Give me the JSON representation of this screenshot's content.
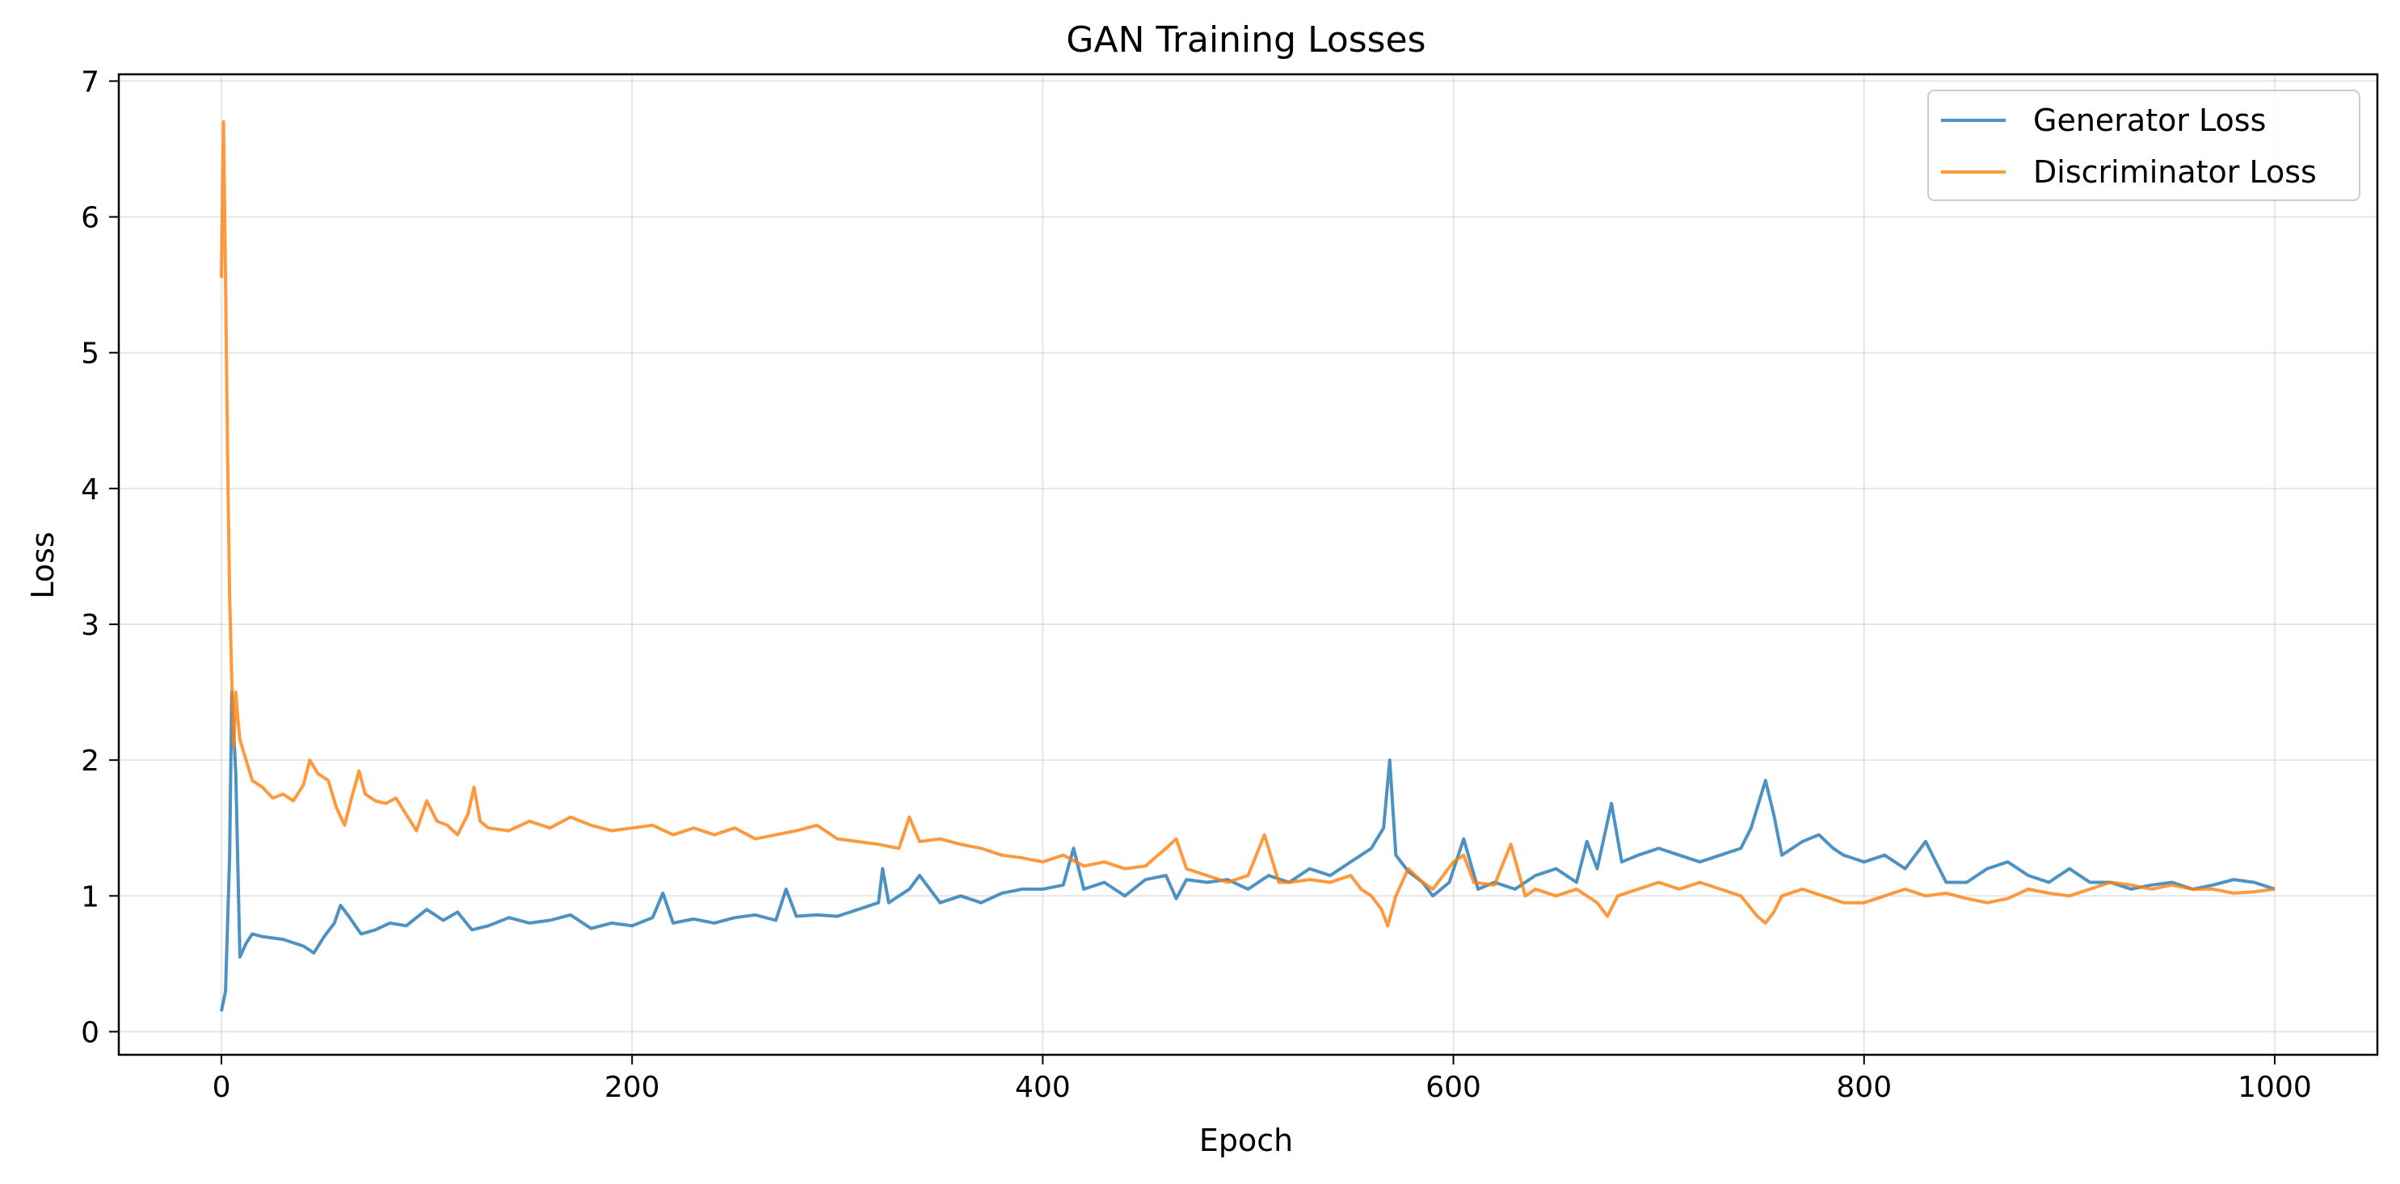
{
  "chart_data": {
    "type": "line",
    "title": "GAN Training Losses",
    "xlabel": "Epoch",
    "ylabel": "Loss",
    "xlim": [
      -50,
      1050
    ],
    "ylim": [
      -0.17,
      7.05
    ],
    "xticks": [
      0,
      200,
      400,
      600,
      800,
      1000
    ],
    "yticks": [
      0,
      1,
      2,
      3,
      4,
      5,
      6,
      7
    ],
    "grid": true,
    "legend_position": "top-right",
    "series": [
      {
        "name": "Generator Loss",
        "color": "#1f77b4",
        "points": [
          [
            0,
            0.15
          ],
          [
            2,
            0.3
          ],
          [
            4,
            1.3
          ],
          [
            5,
            2.5
          ],
          [
            7,
            1.9
          ],
          [
            8,
            1.2
          ],
          [
            9,
            0.55
          ],
          [
            12,
            0.65
          ],
          [
            15,
            0.72
          ],
          [
            20,
            0.7
          ],
          [
            30,
            0.68
          ],
          [
            40,
            0.63
          ],
          [
            45,
            0.58
          ],
          [
            50,
            0.7
          ],
          [
            55,
            0.8
          ],
          [
            58,
            0.93
          ],
          [
            62,
            0.85
          ],
          [
            68,
            0.72
          ],
          [
            75,
            0.75
          ],
          [
            82,
            0.8
          ],
          [
            90,
            0.78
          ],
          [
            100,
            0.9
          ],
          [
            108,
            0.82
          ],
          [
            115,
            0.88
          ],
          [
            122,
            0.75
          ],
          [
            130,
            0.78
          ],
          [
            140,
            0.84
          ],
          [
            150,
            0.8
          ],
          [
            160,
            0.82
          ],
          [
            170,
            0.86
          ],
          [
            180,
            0.76
          ],
          [
            190,
            0.8
          ],
          [
            200,
            0.78
          ],
          [
            210,
            0.84
          ],
          [
            215,
            1.02
          ],
          [
            220,
            0.8
          ],
          [
            230,
            0.83
          ],
          [
            240,
            0.8
          ],
          [
            250,
            0.84
          ],
          [
            260,
            0.86
          ],
          [
            270,
            0.82
          ],
          [
            275,
            1.05
          ],
          [
            280,
            0.85
          ],
          [
            290,
            0.86
          ],
          [
            300,
            0.85
          ],
          [
            310,
            0.9
          ],
          [
            320,
            0.95
          ],
          [
            322,
            1.2
          ],
          [
            325,
            0.95
          ],
          [
            335,
            1.05
          ],
          [
            340,
            1.15
          ],
          [
            350,
            0.95
          ],
          [
            360,
            1.0
          ],
          [
            370,
            0.95
          ],
          [
            380,
            1.02
          ],
          [
            390,
            1.05
          ],
          [
            400,
            1.05
          ],
          [
            410,
            1.08
          ],
          [
            415,
            1.35
          ],
          [
            420,
            1.05
          ],
          [
            430,
            1.1
          ],
          [
            440,
            1.0
          ],
          [
            450,
            1.12
          ],
          [
            460,
            1.15
          ],
          [
            465,
            0.98
          ],
          [
            470,
            1.12
          ],
          [
            480,
            1.1
          ],
          [
            490,
            1.12
          ],
          [
            500,
            1.05
          ],
          [
            510,
            1.15
          ],
          [
            520,
            1.1
          ],
          [
            530,
            1.2
          ],
          [
            540,
            1.15
          ],
          [
            550,
            1.25
          ],
          [
            560,
            1.35
          ],
          [
            566,
            1.5
          ],
          [
            569,
            2.0
          ],
          [
            572,
            1.3
          ],
          [
            578,
            1.18
          ],
          [
            585,
            1.1
          ],
          [
            590,
            1.0
          ],
          [
            598,
            1.1
          ],
          [
            605,
            1.42
          ],
          [
            612,
            1.05
          ],
          [
            620,
            1.1
          ],
          [
            630,
            1.05
          ],
          [
            640,
            1.15
          ],
          [
            650,
            1.2
          ],
          [
            660,
            1.1
          ],
          [
            665,
            1.4
          ],
          [
            670,
            1.2
          ],
          [
            677,
            1.68
          ],
          [
            682,
            1.25
          ],
          [
            690,
            1.3
          ],
          [
            700,
            1.35
          ],
          [
            710,
            1.3
          ],
          [
            720,
            1.25
          ],
          [
            730,
            1.3
          ],
          [
            740,
            1.35
          ],
          [
            745,
            1.5
          ],
          [
            752,
            1.85
          ],
          [
            756,
            1.6
          ],
          [
            760,
            1.3
          ],
          [
            770,
            1.4
          ],
          [
            778,
            1.45
          ],
          [
            785,
            1.35
          ],
          [
            790,
            1.3
          ],
          [
            800,
            1.25
          ],
          [
            810,
            1.3
          ],
          [
            820,
            1.2
          ],
          [
            830,
            1.4
          ],
          [
            840,
            1.1
          ],
          [
            850,
            1.1
          ],
          [
            860,
            1.2
          ],
          [
            870,
            1.25
          ],
          [
            880,
            1.15
          ],
          [
            890,
            1.1
          ],
          [
            900,
            1.2
          ],
          [
            910,
            1.1
          ],
          [
            920,
            1.1
          ],
          [
            930,
            1.05
          ],
          [
            940,
            1.08
          ],
          [
            950,
            1.1
          ],
          [
            960,
            1.05
          ],
          [
            970,
            1.08
          ],
          [
            980,
            1.12
          ],
          [
            990,
            1.1
          ],
          [
            1000,
            1.05
          ]
        ]
      },
      {
        "name": "Discriminator Loss",
        "color": "#ff7f0e",
        "points": [
          [
            0,
            5.55
          ],
          [
            1,
            6.7
          ],
          [
            2,
            5.55
          ],
          [
            3,
            4.2
          ],
          [
            4,
            3.2
          ],
          [
            5,
            2.6
          ],
          [
            6,
            2.1
          ],
          [
            7,
            2.5
          ],
          [
            8,
            2.3
          ],
          [
            9,
            2.15
          ],
          [
            12,
            2.0
          ],
          [
            15,
            1.85
          ],
          [
            20,
            1.8
          ],
          [
            25,
            1.72
          ],
          [
            30,
            1.75
          ],
          [
            35,
            1.7
          ],
          [
            40,
            1.82
          ],
          [
            43,
            2.0
          ],
          [
            47,
            1.9
          ],
          [
            52,
            1.85
          ],
          [
            56,
            1.65
          ],
          [
            60,
            1.52
          ],
          [
            63,
            1.7
          ],
          [
            67,
            1.92
          ],
          [
            70,
            1.75
          ],
          [
            75,
            1.7
          ],
          [
            80,
            1.68
          ],
          [
            85,
            1.72
          ],
          [
            90,
            1.6
          ],
          [
            95,
            1.48
          ],
          [
            100,
            1.7
          ],
          [
            105,
            1.55
          ],
          [
            110,
            1.52
          ],
          [
            115,
            1.45
          ],
          [
            120,
            1.6
          ],
          [
            123,
            1.8
          ],
          [
            126,
            1.55
          ],
          [
            130,
            1.5
          ],
          [
            140,
            1.48
          ],
          [
            150,
            1.55
          ],
          [
            160,
            1.5
          ],
          [
            170,
            1.58
          ],
          [
            180,
            1.52
          ],
          [
            190,
            1.48
          ],
          [
            200,
            1.5
          ],
          [
            210,
            1.52
          ],
          [
            220,
            1.45
          ],
          [
            230,
            1.5
          ],
          [
            240,
            1.45
          ],
          [
            250,
            1.5
          ],
          [
            260,
            1.42
          ],
          [
            270,
            1.45
          ],
          [
            280,
            1.48
          ],
          [
            290,
            1.52
          ],
          [
            300,
            1.42
          ],
          [
            310,
            1.4
          ],
          [
            320,
            1.38
          ],
          [
            330,
            1.35
          ],
          [
            335,
            1.58
          ],
          [
            340,
            1.4
          ],
          [
            350,
            1.42
          ],
          [
            360,
            1.38
          ],
          [
            370,
            1.35
          ],
          [
            380,
            1.3
          ],
          [
            390,
            1.28
          ],
          [
            400,
            1.25
          ],
          [
            410,
            1.3
          ],
          [
            420,
            1.22
          ],
          [
            430,
            1.25
          ],
          [
            440,
            1.2
          ],
          [
            450,
            1.22
          ],
          [
            460,
            1.35
          ],
          [
            465,
            1.42
          ],
          [
            470,
            1.2
          ],
          [
            480,
            1.15
          ],
          [
            490,
            1.1
          ],
          [
            500,
            1.15
          ],
          [
            508,
            1.45
          ],
          [
            515,
            1.1
          ],
          [
            520,
            1.1
          ],
          [
            530,
            1.12
          ],
          [
            540,
            1.1
          ],
          [
            550,
            1.15
          ],
          [
            555,
            1.05
          ],
          [
            560,
            1.0
          ],
          [
            565,
            0.9
          ],
          [
            568,
            0.78
          ],
          [
            572,
            1.0
          ],
          [
            578,
            1.2
          ],
          [
            585,
            1.1
          ],
          [
            590,
            1.05
          ],
          [
            600,
            1.25
          ],
          [
            605,
            1.3
          ],
          [
            610,
            1.1
          ],
          [
            620,
            1.08
          ],
          [
            628,
            1.38
          ],
          [
            635,
            1.0
          ],
          [
            640,
            1.05
          ],
          [
            650,
            1.0
          ],
          [
            660,
            1.05
          ],
          [
            670,
            0.95
          ],
          [
            675,
            0.85
          ],
          [
            680,
            1.0
          ],
          [
            690,
            1.05
          ],
          [
            700,
            1.1
          ],
          [
            710,
            1.05
          ],
          [
            720,
            1.1
          ],
          [
            730,
            1.05
          ],
          [
            740,
            1.0
          ],
          [
            748,
            0.85
          ],
          [
            752,
            0.8
          ],
          [
            756,
            0.88
          ],
          [
            760,
            1.0
          ],
          [
            770,
            1.05
          ],
          [
            780,
            1.0
          ],
          [
            790,
            0.95
          ],
          [
            800,
            0.95
          ],
          [
            810,
            1.0
          ],
          [
            820,
            1.05
          ],
          [
            830,
            1.0
          ],
          [
            840,
            1.02
          ],
          [
            850,
            0.98
          ],
          [
            860,
            0.95
          ],
          [
            870,
            0.98
          ],
          [
            880,
            1.05
          ],
          [
            890,
            1.02
          ],
          [
            900,
            1.0
          ],
          [
            910,
            1.05
          ],
          [
            920,
            1.1
          ],
          [
            930,
            1.08
          ],
          [
            940,
            1.05
          ],
          [
            950,
            1.08
          ],
          [
            960,
            1.05
          ],
          [
            970,
            1.05
          ],
          [
            980,
            1.02
          ],
          [
            990,
            1.03
          ],
          [
            1000,
            1.05
          ]
        ]
      }
    ]
  }
}
